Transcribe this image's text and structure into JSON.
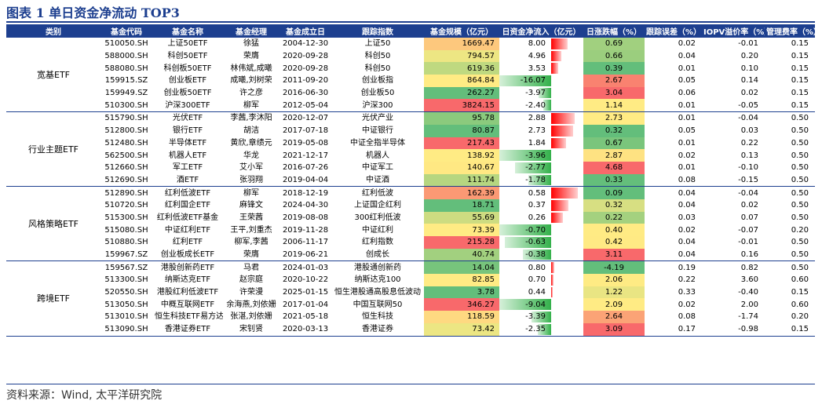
{
  "title": "图表 1  单日资金净流动 TOP3",
  "footer": "资料来源：Wind, 太平洋研究院",
  "columns": [
    "类别",
    "基金代码",
    "基金名称",
    "基金经理",
    "基金成立日",
    "跟踪指数",
    "基金规模（亿元）",
    "日资金净流入（亿元）",
    "日涨跌幅（%）",
    "跟踪误差（%）",
    "IOPV溢价率（%）",
    "管理费率（%）"
  ],
  "colors": {
    "header": "#1d3f8f",
    "flow_pos": "#ff0000",
    "flow_neg": "#33b04a"
  },
  "groups": [
    {
      "category": "宽基ETF",
      "rows": [
        {
          "code": "510050.SH",
          "name": "上证50ETF",
          "manager": "徐猛",
          "date": "2004-12-30",
          "index": "上证50",
          "scale": "1669.47",
          "flow": "8.00",
          "chg": "0.69",
          "te": "0.02",
          "iopv": "-0.01",
          "fee": "0.15"
        },
        {
          "code": "588000.SH",
          "name": "科创50ETF",
          "manager": "荣膺",
          "date": "2020-09-28",
          "index": "科创50",
          "scale": "794.57",
          "flow": "4.96",
          "chg": "0.66",
          "te": "0.04",
          "iopv": "0.20",
          "fee": "0.15"
        },
        {
          "code": "588080.SH",
          "name": "科创板50ETF",
          "manager": "林伟斌,成曦",
          "date": "2020-09-28",
          "index": "科创50",
          "scale": "619.36",
          "flow": "3.53",
          "chg": "0.39",
          "te": "0.01",
          "iopv": "0.10",
          "fee": "0.15"
        },
        {
          "code": "159915.SZ",
          "name": "创业板ETF",
          "manager": "成曦,刘树荣",
          "date": "2011-09-20",
          "index": "创业板指",
          "scale": "864.84",
          "flow": "-16.07",
          "chg": "2.67",
          "te": "0.05",
          "iopv": "0.14",
          "fee": "0.15"
        },
        {
          "code": "159949.SZ",
          "name": "创业板50ETF",
          "manager": "许之彦",
          "date": "2016-06-30",
          "index": "创业板50",
          "scale": "262.27",
          "flow": "-3.97",
          "chg": "3.04",
          "te": "0.06",
          "iopv": "0.02",
          "fee": "0.15"
        },
        {
          "code": "510300.SH",
          "name": "沪深300ETF",
          "manager": "柳军",
          "date": "2012-05-04",
          "index": "沪深300",
          "scale": "3824.15",
          "flow": "-2.40",
          "chg": "1.14",
          "te": "0.01",
          "iopv": "-0.05",
          "fee": "0.15"
        }
      ]
    },
    {
      "category": "行业主题ETF",
      "rows": [
        {
          "code": "515790.SH",
          "name": "光伏ETF",
          "manager": "李茜,李沐阳",
          "date": "2020-12-07",
          "index": "光伏产业",
          "scale": "95.78",
          "flow": "2.88",
          "chg": "2.73",
          "te": "0.01",
          "iopv": "-0.04",
          "fee": "0.50"
        },
        {
          "code": "512800.SH",
          "name": "银行ETF",
          "manager": "胡洁",
          "date": "2017-07-18",
          "index": "中证银行",
          "scale": "80.87",
          "flow": "2.73",
          "chg": "0.32",
          "te": "0.05",
          "iopv": "0.03",
          "fee": "0.50"
        },
        {
          "code": "512480.SH",
          "name": "半导体ETF",
          "manager": "黄欣,章绩元",
          "date": "2019-05-08",
          "index": "中证全指半导体",
          "scale": "217.43",
          "flow": "1.84",
          "chg": "0.67",
          "te": "0.01",
          "iopv": "0.22",
          "fee": "0.50"
        },
        {
          "code": "562500.SH",
          "name": "机器人ETF",
          "manager": "华龙",
          "date": "2021-12-17",
          "index": "机器人",
          "scale": "138.92",
          "flow": "-3.96",
          "chg": "2.87",
          "te": "0.02",
          "iopv": "0.13",
          "fee": "0.50"
        },
        {
          "code": "512660.SH",
          "name": "军工ETF",
          "manager": "艾小军",
          "date": "2016-07-26",
          "index": "中证军工",
          "scale": "140.67",
          "flow": "-2.77",
          "chg": "4.68",
          "te": "0.01",
          "iopv": "-0.10",
          "fee": "0.50"
        },
        {
          "code": "512690.SH",
          "name": "酒ETF",
          "manager": "张羽翔",
          "date": "2019-04-04",
          "index": "中证酒",
          "scale": "111.74",
          "flow": "-1.78",
          "chg": "0.33",
          "te": "0.08",
          "iopv": "-0.15",
          "fee": "0.50"
        }
      ]
    },
    {
      "category": "风格策略ETF",
      "rows": [
        {
          "code": "512890.SH",
          "name": "红利低波ETF",
          "manager": "柳军",
          "date": "2018-12-19",
          "index": "红利低波",
          "scale": "162.39",
          "flow": "0.58",
          "chg": "0.09",
          "te": "0.04",
          "iopv": "-0.04",
          "fee": "0.50"
        },
        {
          "code": "510720.SH",
          "name": "红利国企ETF",
          "manager": "麻锋文",
          "date": "2024-04-30",
          "index": "上证国企红利",
          "scale": "18.71",
          "flow": "0.37",
          "chg": "0.32",
          "te": "0.04",
          "iopv": "0.02",
          "fee": "0.50"
        },
        {
          "code": "515300.SH",
          "name": "红利低波ETF基金",
          "manager": "王荣茜",
          "date": "2019-08-08",
          "index": "300红利低波",
          "scale": "55.69",
          "flow": "0.26",
          "chg": "0.22",
          "te": "0.03",
          "iopv": "0.07",
          "fee": "0.50"
        },
        {
          "code": "515080.SH",
          "name": "中证红利ETF",
          "manager": "王平,刘重杰",
          "date": "2019-11-28",
          "index": "中证红利",
          "scale": "73.39",
          "flow": "-0.70",
          "chg": "0.40",
          "te": "0.02",
          "iopv": "-0.07",
          "fee": "0.20"
        },
        {
          "code": "510880.SH",
          "name": "红利ETF",
          "manager": "柳军,李茜",
          "date": "2006-11-17",
          "index": "红利指数",
          "scale": "215.28",
          "flow": "-0.63",
          "chg": "0.42",
          "te": "0.04",
          "iopv": "-0.01",
          "fee": "0.50"
        },
        {
          "code": "159967.SZ",
          "name": "创业板成长ETF",
          "manager": "荣膺",
          "date": "2019-06-21",
          "index": "创成长",
          "scale": "40.74",
          "flow": "-0.38",
          "chg": "3.11",
          "te": "0.04",
          "iopv": "0.16",
          "fee": "0.50"
        }
      ]
    },
    {
      "category": "跨境ETF",
      "rows": [
        {
          "code": "159567.SZ",
          "name": "港股创新药ETF",
          "manager": "马君",
          "date": "2024-01-03",
          "index": "港股通创新药",
          "scale": "14.04",
          "flow": "0.80",
          "chg": "-4.19",
          "te": "0.19",
          "iopv": "0.82",
          "fee": "0.50"
        },
        {
          "code": "513300.SH",
          "name": "纳斯达克ETF",
          "manager": "赵宗庭",
          "date": "2020-10-22",
          "index": "纳斯达克100",
          "scale": "82.85",
          "flow": "0.70",
          "chg": "2.06",
          "te": "0.22",
          "iopv": "3.60",
          "fee": "0.60"
        },
        {
          "code": "520550.SH",
          "name": "港股红利低波ETF",
          "manager": "许荣漫",
          "date": "2025-01-15",
          "index": "恒生港股通高股息低波动",
          "scale": "3.78",
          "flow": "0.44",
          "chg": "1.22",
          "te": "0.33",
          "iopv": "-0.40",
          "fee": "0.15"
        },
        {
          "code": "513050.SH",
          "name": "中概互联网ETF",
          "manager": "余海燕,刘依姗",
          "date": "2017-01-04",
          "index": "中国互联网50",
          "scale": "346.27",
          "flow": "-9.04",
          "chg": "2.09",
          "te": "0.02",
          "iopv": "2.00",
          "fee": "0.60"
        },
        {
          "code": "513010.SH",
          "name": "恒生科技ETF易方达",
          "manager": "张湛,刘依姗",
          "date": "2021-05-18",
          "index": "恒生科技",
          "scale": "118.59",
          "flow": "-3.39",
          "chg": "2.64",
          "te": "0.08",
          "iopv": "-1.74",
          "fee": "0.20"
        },
        {
          "code": "513090.SH",
          "name": "香港证券ETF",
          "manager": "宋钊贤",
          "date": "2020-03-13",
          "index": "香港证券",
          "scale": "73.42",
          "flow": "-2.35",
          "chg": "3.09",
          "te": "0.17",
          "iopv": "-0.98",
          "fee": "0.15"
        }
      ]
    }
  ]
}
